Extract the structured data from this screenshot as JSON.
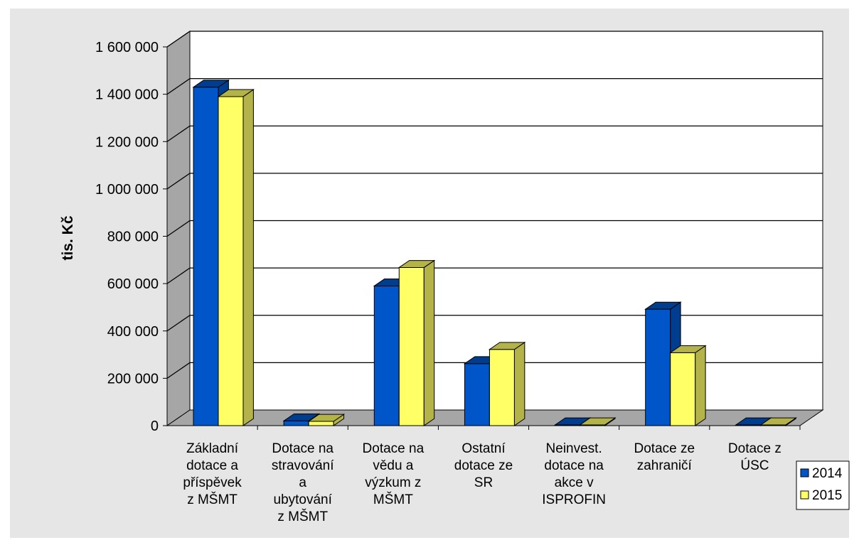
{
  "chart_data": {
    "type": "bar",
    "style": "3d-clustered-column",
    "ylabel": "tis. Kč",
    "ylim": [
      0,
      1600000
    ],
    "yticks": [
      "0",
      "200 000",
      "400 000",
      "600 000",
      "800 000",
      "1 000 000",
      "1 200 000",
      "1 400 000",
      "1 600 000"
    ],
    "ytick_values": [
      0,
      200000,
      400000,
      600000,
      800000,
      1000000,
      1200000,
      1400000,
      1600000
    ],
    "grid": true,
    "legend_position": "right",
    "categories": [
      [
        "Základní",
        "dotace a",
        "příspěvek",
        "z MŠMT"
      ],
      [
        "Dotace na",
        "stravování",
        "a",
        "ubytování",
        "z MŠMT"
      ],
      [
        "Dotace na",
        "vědu a",
        "výzkum z",
        "MŠMT"
      ],
      [
        "Ostatní",
        "dotace ze",
        "SR"
      ],
      [
        "Neinvest.",
        "dotace na",
        "akce v",
        "ISPROFIN"
      ],
      [
        "Dotace ze",
        "zahraničí"
      ],
      [
        "Dotace z",
        "ÚSC"
      ]
    ],
    "series": [
      {
        "name": "2014",
        "color": "#0055c8",
        "side_color": "#003d8f",
        "values": [
          1430000,
          20000,
          590000,
          262000,
          3000,
          492000,
          3000
        ]
      },
      {
        "name": "2015",
        "color": "#ffff66",
        "side_color": "#b3b34a",
        "values": [
          1390000,
          18000,
          668000,
          322000,
          3000,
          308000,
          3000
        ]
      }
    ]
  },
  "colors": {
    "background_frame": "#e6e6e6",
    "wall_back": "#ffffff",
    "wall_left": "#a6a6a6",
    "floor": "#a6a6a6",
    "gridline": "#000000"
  }
}
